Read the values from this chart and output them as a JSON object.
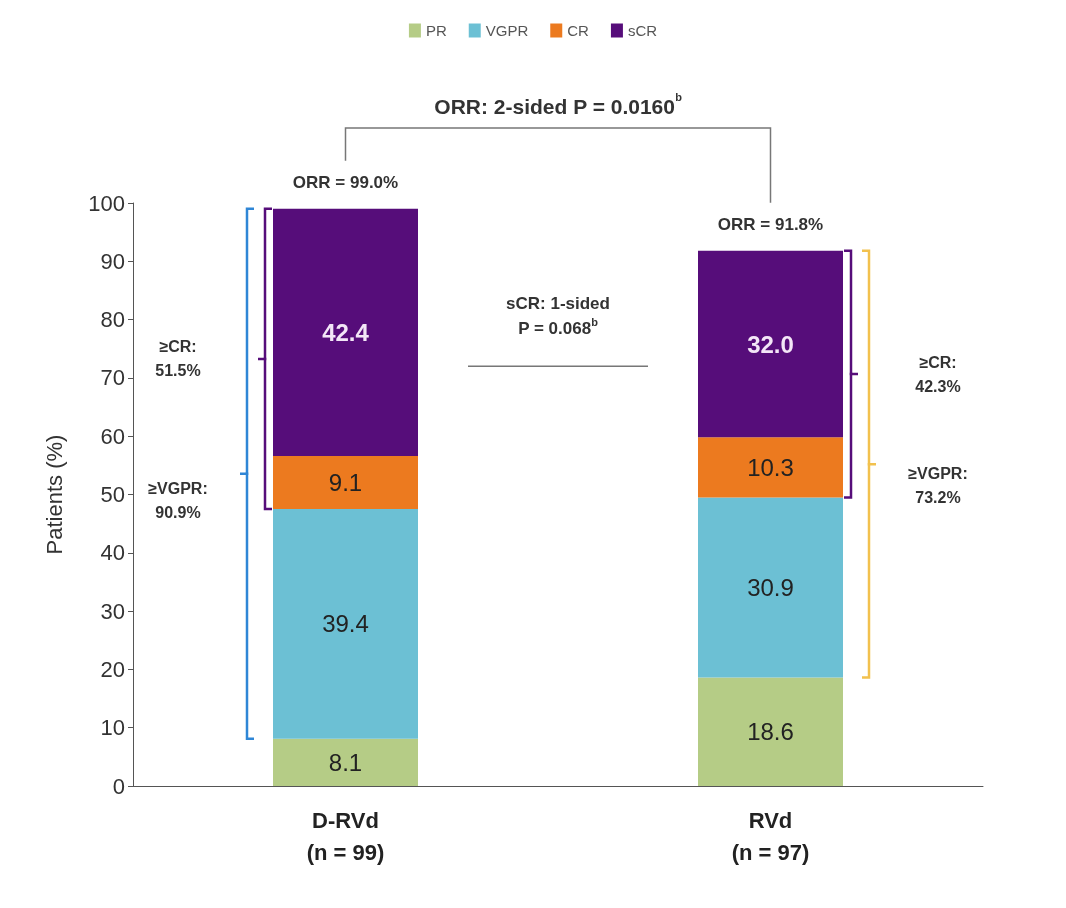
{
  "chart_data": {
    "type": "bar",
    "stacked": true,
    "ylabel": "Patients (%)",
    "categories": [
      "D-RVd\n(n = 99)",
      "RVd\n(n = 97)"
    ],
    "series": [
      {
        "name": "PR",
        "color": "#b5cc86",
        "values": [
          8.1,
          18.6
        ],
        "value_labels": [
          "8.1",
          "18.6"
        ]
      },
      {
        "name": "VGPR",
        "color": "#6cc0d4",
        "values": [
          39.4,
          30.9
        ],
        "value_labels": [
          "39.4",
          "30.9"
        ]
      },
      {
        "name": "CR",
        "color": "#ec7a1f",
        "values": [
          9.1,
          10.3
        ],
        "value_labels": [
          "9.1",
          "10.3"
        ]
      },
      {
        "name": "sCR",
        "color": "#560d7a",
        "values": [
          42.4,
          32.0
        ],
        "value_labels": [
          "42.4",
          "32.0"
        ]
      }
    ],
    "ylim": [
      0,
      100
    ],
    "yticks": [
      0,
      10,
      20,
      30,
      40,
      50,
      60,
      70,
      80,
      90,
      100
    ],
    "grid": false,
    "legend": "top",
    "annotations": [
      "ORR: 2-sided P = 0.0160$^{b}$",
      "sCR: 1-sided\nP = 0.068$^{b}$",
      {
        "text": "ORR = 99.0%",
        "x": "D-RVd\n(n = 99)",
        "y": 99.0
      },
      {
        "text": "ORR = 91.8%",
        "x": "RVd\n(n = 97)",
        "y": 91.8
      },
      "≥CR:\n51.5%",
      "≥VGPR:\n90.9%",
      "≥CR:\n42.3%",
      "≥VGPR:\n73.2%"
    ]
  }
}
